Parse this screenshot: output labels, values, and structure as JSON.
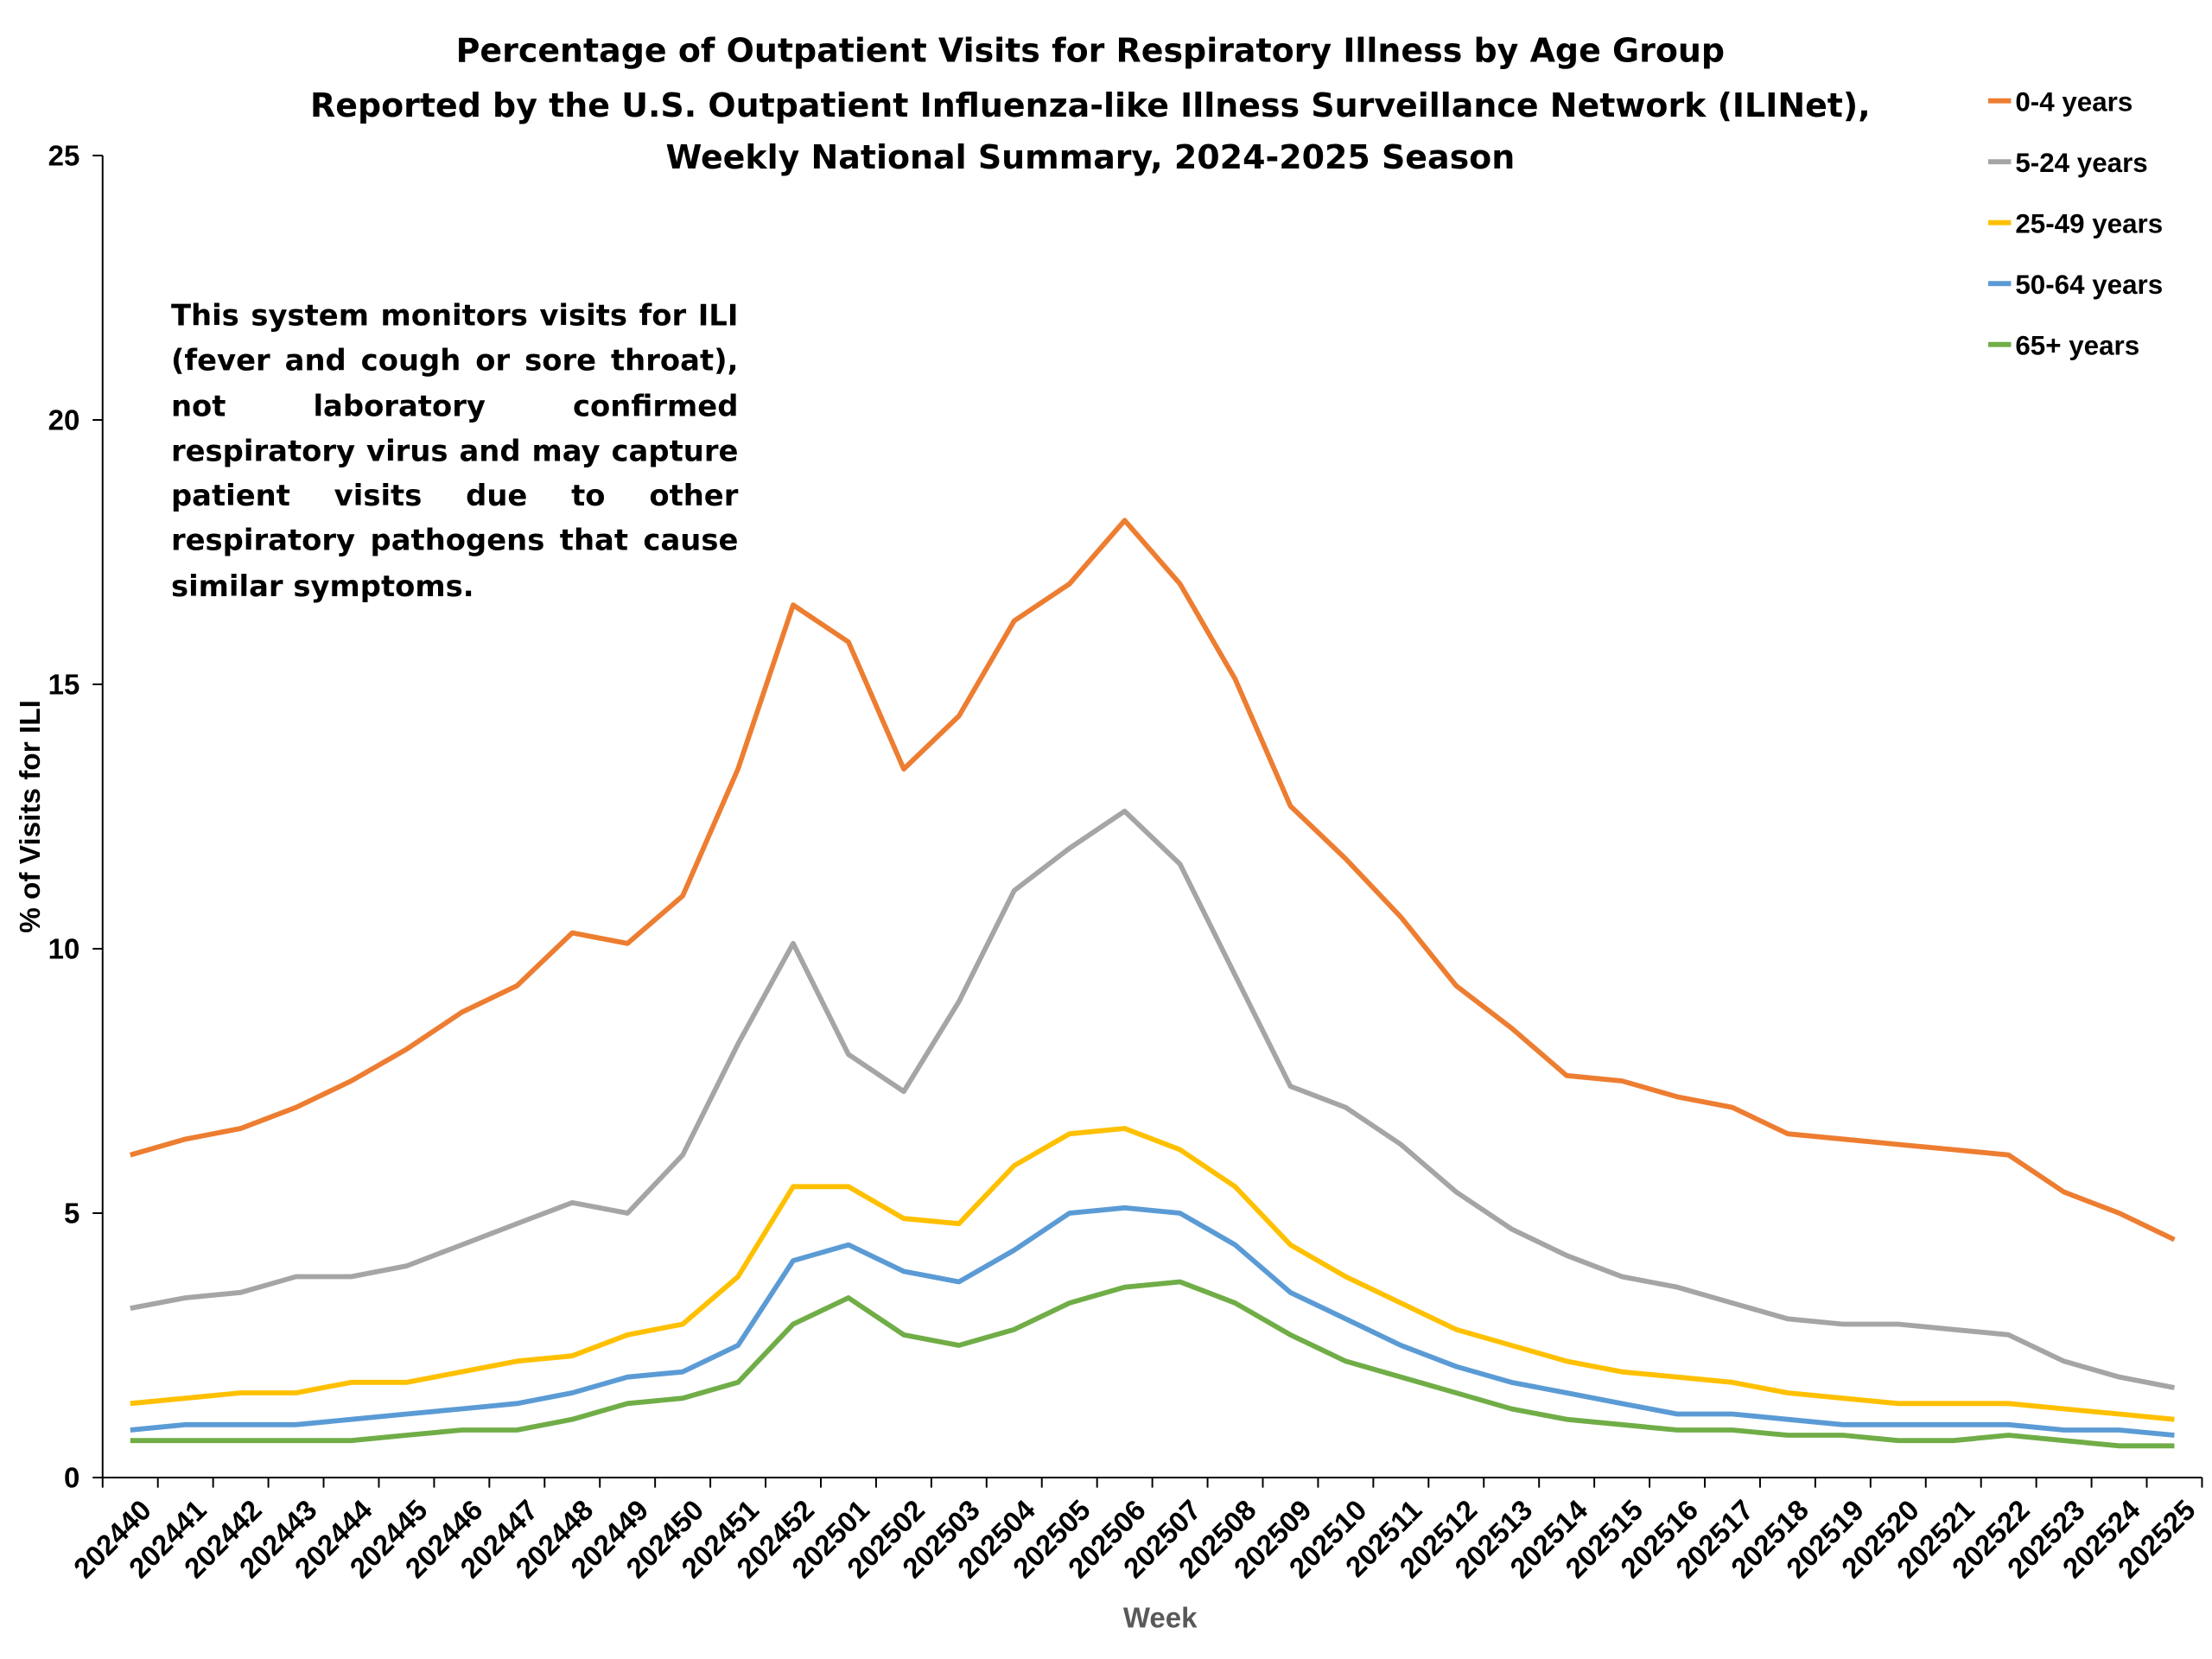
{
  "chart_data": {
    "type": "line",
    "title": [
      "Percentage of Outpatient Visits for Respiratory Illness by Age Group",
      "Reported by the U.S. Outpatient Influenza-like Illness Surveillance Network (ILINet),",
      "Weekly National Summary, 2024-2025 Season"
    ],
    "y_label": "% of Visits for ILI",
    "x_label": "Week",
    "annotation": "This system monitors visits for ILI (fever and cough or sore throat), not laboratory confirmed respiratory virus and may capture patient visits due to other respiratory pathogens that cause similar symptoms.",
    "categories": [
      "202440",
      "202441",
      "202442",
      "202443",
      "202444",
      "202445",
      "202446",
      "202447",
      "202448",
      "202449",
      "202450",
      "202451",
      "202452",
      "202501",
      "202502",
      "202503",
      "202504",
      "202505",
      "202506",
      "202507",
      "202508",
      "202509",
      "202510",
      "202511",
      "202512",
      "202513",
      "202514",
      "202515",
      "202516",
      "202517",
      "202518",
      "202519",
      "202520",
      "202521",
      "202522",
      "202523",
      "202524",
      "202525"
    ],
    "ylim": [
      0,
      25
    ],
    "yticks": [
      0,
      5,
      10,
      15,
      20,
      25
    ],
    "grid": false,
    "legend": "top-right",
    "series": [
      {
        "name": "0-4 years",
        "color": "#ed7d31",
        "values": [
          6.1,
          6.4,
          6.6,
          7.0,
          7.5,
          8.1,
          8.8,
          9.3,
          10.3,
          10.1,
          11.0,
          13.4,
          16.5,
          15.8,
          13.4,
          14.4,
          16.2,
          16.9,
          18.1,
          16.9,
          15.1,
          12.7,
          11.7,
          10.6,
          9.3,
          8.5,
          7.6,
          7.5,
          7.2,
          7.0,
          6.5,
          6.4,
          6.3,
          6.2,
          6.1,
          5.4,
          5.0,
          4.5
        ]
      },
      {
        "name": "5-24 years",
        "color": "#a5a5a5",
        "values": [
          3.2,
          3.4,
          3.5,
          3.8,
          3.8,
          4.0,
          4.4,
          4.8,
          5.2,
          5.0,
          6.1,
          8.2,
          10.1,
          8.0,
          7.3,
          9.0,
          11.1,
          11.9,
          12.6,
          11.6,
          9.5,
          7.4,
          7.0,
          6.3,
          5.4,
          4.7,
          4.2,
          3.8,
          3.6,
          3.3,
          3.0,
          2.9,
          2.9,
          2.8,
          2.7,
          2.2,
          1.9,
          1.7
        ]
      },
      {
        "name": "25-49 years",
        "color": "#ffc000",
        "values": [
          1.4,
          1.5,
          1.6,
          1.6,
          1.8,
          1.8,
          2.0,
          2.2,
          2.3,
          2.7,
          2.9,
          3.8,
          5.5,
          5.5,
          4.9,
          4.8,
          5.9,
          6.5,
          6.6,
          6.2,
          5.5,
          4.4,
          3.8,
          3.3,
          2.8,
          2.5,
          2.2,
          2.0,
          1.9,
          1.8,
          1.6,
          1.5,
          1.4,
          1.4,
          1.4,
          1.3,
          1.2,
          1.1
        ]
      },
      {
        "name": "50-64 years",
        "color": "#5b9bd5",
        "values": [
          0.9,
          1.0,
          1.0,
          1.0,
          1.1,
          1.2,
          1.3,
          1.4,
          1.6,
          1.9,
          2.0,
          2.5,
          4.1,
          4.4,
          3.9,
          3.7,
          4.3,
          5.0,
          5.1,
          5.0,
          4.4,
          3.5,
          3.0,
          2.5,
          2.1,
          1.8,
          1.6,
          1.4,
          1.2,
          1.2,
          1.1,
          1.0,
          1.0,
          1.0,
          1.0,
          0.9,
          0.9,
          0.8
        ]
      },
      {
        "name": "65+ years",
        "color": "#70ad47",
        "values": [
          0.7,
          0.7,
          0.7,
          0.7,
          0.7,
          0.8,
          0.9,
          0.9,
          1.1,
          1.4,
          1.5,
          1.8,
          2.9,
          3.4,
          2.7,
          2.5,
          2.8,
          3.3,
          3.6,
          3.7,
          3.3,
          2.7,
          2.2,
          1.9,
          1.6,
          1.3,
          1.1,
          1.0,
          0.9,
          0.9,
          0.8,
          0.8,
          0.7,
          0.7,
          0.8,
          0.7,
          0.6,
          0.6
        ]
      }
    ]
  }
}
